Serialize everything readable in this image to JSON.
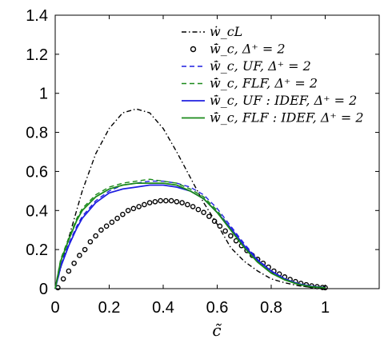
{
  "chart_data": {
    "type": "line",
    "title": "",
    "xlabel": "c̃",
    "ylabel": "",
    "xlim": [
      0,
      1.2
    ],
    "ylim": [
      0,
      1.4
    ],
    "xticks": [
      0,
      0.2,
      0.4,
      0.6,
      0.8,
      1
    ],
    "xtick_labels": [
      "0",
      "0.2",
      "0.4",
      "0.6",
      "0.8",
      "1"
    ],
    "yticks": [
      0,
      0.2,
      0.4,
      0.6,
      0.8,
      1,
      1.2,
      1.4
    ],
    "ytick_labels": [
      "0",
      "0.2",
      "0.4",
      "0.6",
      "0.8",
      "1",
      "1.2",
      "1.4"
    ],
    "grid": false,
    "legend_position": "top-right",
    "series": [
      {
        "name": "ẇ_cL",
        "style": "dashdot",
        "color": "#000000",
        "x": [
          0,
          0.05,
          0.1,
          0.15,
          0.2,
          0.25,
          0.3,
          0.35,
          0.4,
          0.45,
          0.5,
          0.55,
          0.6,
          0.65,
          0.7,
          0.75,
          0.8,
          0.85,
          0.9,
          0.95,
          1.0
        ],
        "y": [
          0,
          0.26,
          0.5,
          0.69,
          0.82,
          0.9,
          0.92,
          0.9,
          0.82,
          0.7,
          0.57,
          0.44,
          0.33,
          0.21,
          0.14,
          0.09,
          0.05,
          0.03,
          0.015,
          0.006,
          0.003
        ]
      },
      {
        "name": "w̄̇_c, Δ⁺ = 2",
        "style": "circles",
        "color": "#000000",
        "x": [
          0.01,
          0.03,
          0.05,
          0.07,
          0.09,
          0.11,
          0.13,
          0.15,
          0.17,
          0.19,
          0.21,
          0.23,
          0.25,
          0.27,
          0.29,
          0.31,
          0.33,
          0.35,
          0.37,
          0.39,
          0.41,
          0.43,
          0.45,
          0.47,
          0.49,
          0.51,
          0.53,
          0.55,
          0.57,
          0.59,
          0.61,
          0.63,
          0.65,
          0.67,
          0.69,
          0.71,
          0.73,
          0.75,
          0.77,
          0.79,
          0.81,
          0.83,
          0.85,
          0.87,
          0.89,
          0.91,
          0.93,
          0.95,
          0.97,
          0.99,
          1.0
        ],
        "y": [
          0.005,
          0.05,
          0.09,
          0.13,
          0.17,
          0.2,
          0.24,
          0.27,
          0.3,
          0.32,
          0.34,
          0.36,
          0.38,
          0.4,
          0.41,
          0.42,
          0.43,
          0.44,
          0.445,
          0.45,
          0.45,
          0.45,
          0.445,
          0.44,
          0.43,
          0.42,
          0.405,
          0.39,
          0.37,
          0.345,
          0.32,
          0.295,
          0.27,
          0.245,
          0.22,
          0.195,
          0.17,
          0.15,
          0.13,
          0.11,
          0.09,
          0.075,
          0.06,
          0.047,
          0.036,
          0.027,
          0.02,
          0.014,
          0.01,
          0.006,
          0.005
        ]
      },
      {
        "name": "w̄̇_c, UF, Δ⁺ = 2",
        "style": "dashed",
        "color": "#1f1fe0",
        "x": [
          0,
          0.02,
          0.05,
          0.08,
          0.1,
          0.15,
          0.2,
          0.25,
          0.3,
          0.35,
          0.4,
          0.45,
          0.5,
          0.55,
          0.6,
          0.65,
          0.7,
          0.75,
          0.8,
          0.85,
          0.9,
          0.95,
          1.0
        ],
        "y": [
          0,
          0.12,
          0.23,
          0.32,
          0.37,
          0.45,
          0.5,
          0.53,
          0.54,
          0.55,
          0.55,
          0.54,
          0.52,
          0.48,
          0.41,
          0.32,
          0.23,
          0.15,
          0.09,
          0.05,
          0.025,
          0.012,
          0.005
        ]
      },
      {
        "name": "w̄̇_c, FLF, Δ⁺ = 2",
        "style": "dashed",
        "color": "#1a8a1a",
        "x": [
          0,
          0.02,
          0.05,
          0.08,
          0.1,
          0.15,
          0.2,
          0.25,
          0.3,
          0.35,
          0.4,
          0.45,
          0.5,
          0.55,
          0.6,
          0.65,
          0.7,
          0.75,
          0.8,
          0.85,
          0.9,
          0.95,
          1.0
        ],
        "y": [
          0,
          0.15,
          0.26,
          0.36,
          0.41,
          0.48,
          0.52,
          0.54,
          0.55,
          0.56,
          0.55,
          0.54,
          0.51,
          0.47,
          0.4,
          0.31,
          0.22,
          0.14,
          0.08,
          0.045,
          0.022,
          0.01,
          0.004
        ]
      },
      {
        "name": "w̄̇_c, UF : IDEF, Δ⁺ = 2",
        "style": "solid",
        "color": "#1f1fe0",
        "x": [
          0,
          0.02,
          0.05,
          0.08,
          0.1,
          0.15,
          0.2,
          0.25,
          0.3,
          0.35,
          0.4,
          0.45,
          0.5,
          0.55,
          0.6,
          0.65,
          0.7,
          0.75,
          0.8,
          0.85,
          0.9,
          0.95,
          1.0
        ],
        "y": [
          0,
          0.11,
          0.22,
          0.31,
          0.36,
          0.44,
          0.49,
          0.51,
          0.52,
          0.53,
          0.53,
          0.52,
          0.5,
          0.46,
          0.39,
          0.31,
          0.22,
          0.145,
          0.09,
          0.05,
          0.025,
          0.012,
          0.005
        ]
      },
      {
        "name": "w̄̇_c, FLF : IDEF, Δ⁺ = 2",
        "style": "solid",
        "color": "#1a8a1a",
        "x": [
          0,
          0.02,
          0.05,
          0.08,
          0.1,
          0.15,
          0.2,
          0.25,
          0.3,
          0.35,
          0.4,
          0.45,
          0.5,
          0.55,
          0.6,
          0.65,
          0.7,
          0.75,
          0.8,
          0.85,
          0.9,
          0.95,
          1.0
        ],
        "y": [
          0,
          0.14,
          0.25,
          0.35,
          0.4,
          0.47,
          0.51,
          0.53,
          0.54,
          0.54,
          0.54,
          0.53,
          0.5,
          0.46,
          0.39,
          0.3,
          0.21,
          0.135,
          0.08,
          0.045,
          0.022,
          0.01,
          0.004
        ]
      }
    ]
  }
}
